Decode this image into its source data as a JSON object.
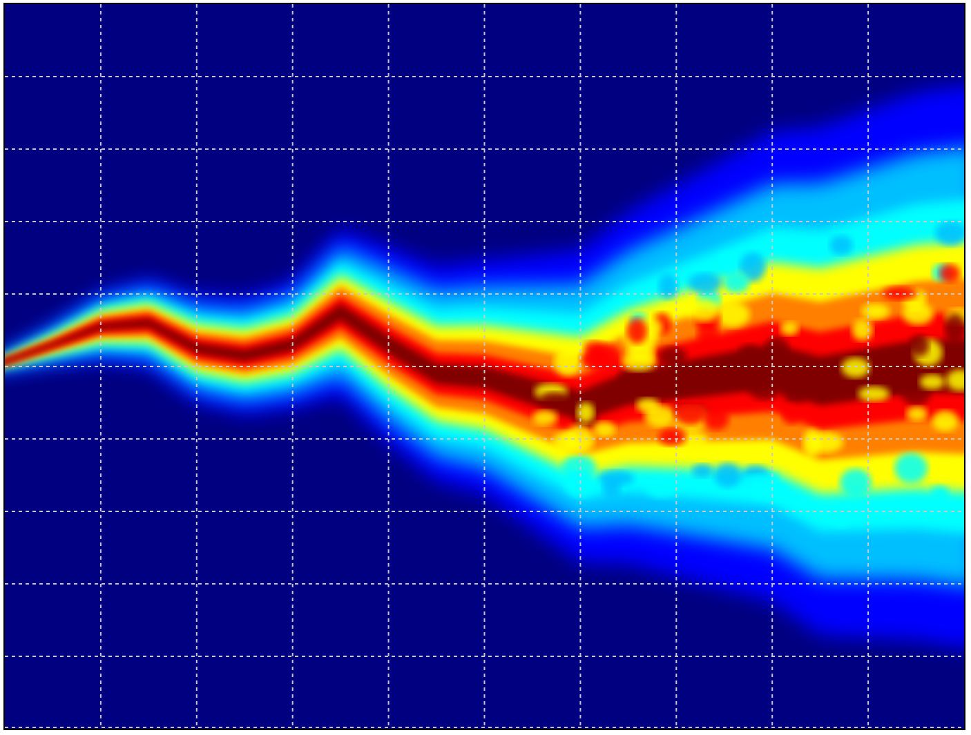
{
  "chart_data": {
    "type": "heatmap",
    "colormap": "jet",
    "colormap_stops": [
      "#000080",
      "#0000ff",
      "#00bfff",
      "#00ffff",
      "#ffff00",
      "#ff8000",
      "#ff0000",
      "#800000"
    ],
    "background_color": "#000080",
    "grid": true,
    "grid_style": "dashed",
    "grid_color": "#c8c8c8",
    "title": "",
    "xlabel": "",
    "ylabel": "",
    "xlim": [
      0,
      10
    ],
    "ylim": [
      -5,
      5
    ],
    "x_gridlines": [
      1,
      2,
      3,
      4,
      5,
      6,
      7,
      8,
      9
    ],
    "y_gridlines": [
      -4,
      -3,
      -2,
      -1,
      0,
      1,
      2,
      3,
      4
    ],
    "x": [
      0,
      0.5,
      1,
      1.5,
      2,
      2.5,
      3,
      3.5,
      4,
      4.5,
      5,
      5.5,
      6,
      6.5,
      7,
      7.5,
      8,
      8.5,
      9,
      9.5,
      10
    ],
    "density_center": [
      0,
      0.3,
      0.55,
      0.6,
      0.25,
      0.15,
      0.3,
      0.75,
      0.3,
      -0.1,
      -0.15,
      -0.35,
      -0.55,
      -0.3,
      -0.2,
      -0.1,
      0.0,
      -0.2,
      -0.1,
      0.0,
      0.0
    ],
    "density_spread": [
      0.05,
      0.2,
      0.35,
      0.45,
      0.55,
      0.6,
      0.65,
      0.85,
      1.0,
      1.1,
      1.2,
      1.4,
      1.6,
      1.8,
      2.0,
      2.2,
      2.4,
      2.6,
      2.7,
      2.8,
      2.9
    ]
  }
}
